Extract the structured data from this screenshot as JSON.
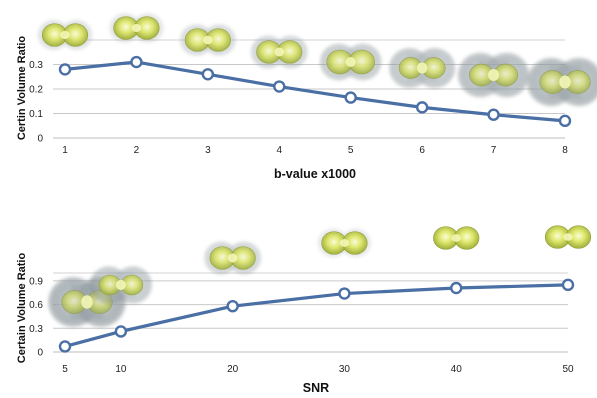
{
  "chart_data": [
    {
      "type": "line",
      "xlabel": "b-value x1000",
      "ylabel": "Certin Volume Ratio",
      "x": [
        1,
        2,
        3,
        4,
        5,
        6,
        7,
        8
      ],
      "series": [
        {
          "values": [
            0.28,
            0.31,
            0.26,
            0.21,
            0.165,
            0.125,
            0.095,
            0.07
          ]
        }
      ],
      "yticks": [
        0,
        0.1,
        0.2,
        0.3
      ],
      "ylim": [
        0,
        0.4
      ],
      "xlim": [
        1,
        8
      ],
      "grid": true,
      "line_color": "#4a6fa5",
      "thumbnails": "glyph-icon above each point: dumbbell shaped green-yellow blobs"
    },
    {
      "type": "line",
      "xlabel": "SNR",
      "ylabel": "Certain Volume Ratio",
      "x": [
        5,
        10,
        20,
        30,
        40,
        50
      ],
      "series": [
        {
          "values": [
            0.07,
            0.26,
            0.58,
            0.74,
            0.81,
            0.85
          ]
        }
      ],
      "yticks": [
        0,
        0.3,
        0.6,
        0.9
      ],
      "ylim": [
        0,
        1.0
      ],
      "xlim": [
        5,
        50
      ],
      "grid": true,
      "line_color": "#4a6fa5"
    }
  ]
}
